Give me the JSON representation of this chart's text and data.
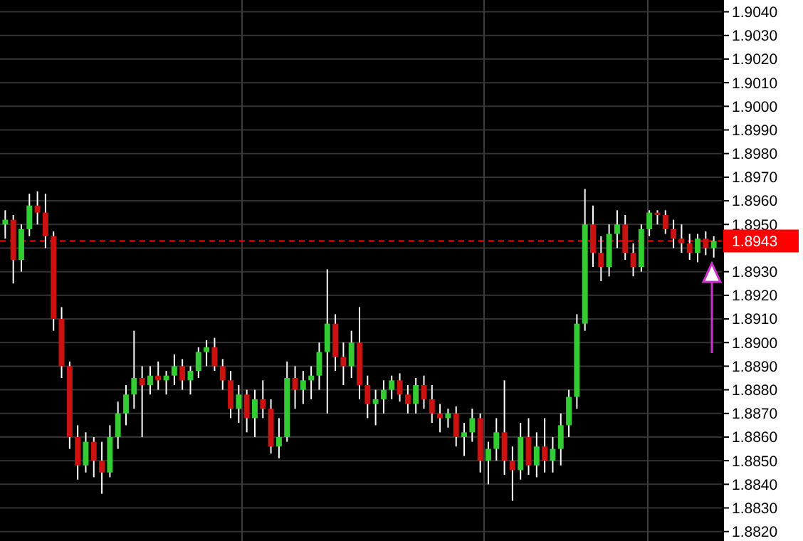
{
  "chart_data": {
    "type": "candlestick",
    "categories": [
      null,
      null,
      null,
      null,
      null,
      null,
      null,
      null,
      null,
      null,
      null,
      null,
      null,
      null,
      null,
      null,
      null,
      null,
      null,
      null,
      null,
      null,
      null,
      null,
      null,
      null,
      null,
      null,
      null,
      null,
      null,
      null,
      null,
      null,
      null,
      null,
      null,
      null,
      null,
      null,
      null,
      null,
      null,
      null,
      null,
      null,
      null,
      null,
      null,
      null,
      null,
      null,
      null,
      null,
      null,
      null,
      null,
      null,
      null,
      null,
      null,
      null,
      null,
      null,
      null,
      null,
      null,
      null,
      null,
      null,
      null,
      null,
      null,
      null,
      null,
      null,
      null,
      null,
      null,
      null,
      null,
      null,
      null,
      null,
      null,
      null,
      null,
      null,
      null
    ],
    "ohlc": [
      [
        1.895,
        1.8956,
        1.8944,
        1.8952
      ],
      [
        1.8952,
        1.8954,
        1.8925,
        1.8935
      ],
      [
        1.8935,
        1.895,
        1.893,
        1.8948
      ],
      [
        1.8948,
        1.8963,
        1.8945,
        1.8958
      ],
      [
        1.8958,
        1.8964,
        1.895,
        1.8955
      ],
      [
        1.8955,
        1.8963,
        1.894,
        1.8945
      ],
      [
        1.8945,
        1.8947,
        1.8905,
        1.891
      ],
      [
        1.891,
        1.8915,
        1.8885,
        1.889
      ],
      [
        1.889,
        1.8892,
        1.8855,
        1.886
      ],
      [
        1.886,
        1.8865,
        1.8842,
        1.8848
      ],
      [
        1.8848,
        1.8862,
        1.8845,
        1.8858
      ],
      [
        1.8858,
        1.886,
        1.8843,
        1.885
      ],
      [
        1.885,
        1.8858,
        1.8836,
        1.8845
      ],
      [
        1.8845,
        1.8865,
        1.8843,
        1.886
      ],
      [
        1.886,
        1.8875,
        1.8855,
        1.887
      ],
      [
        1.887,
        1.8882,
        1.8865,
        1.8878
      ],
      [
        1.8878,
        1.8905,
        1.8872,
        1.8885
      ],
      [
        1.8885,
        1.889,
        1.886,
        1.8882
      ],
      [
        1.8882,
        1.889,
        1.8878,
        1.8886
      ],
      [
        1.8886,
        1.8892,
        1.888,
        1.8884
      ],
      [
        1.8884,
        1.8888,
        1.8878,
        1.8886
      ],
      [
        1.8886,
        1.8895,
        1.8882,
        1.889
      ],
      [
        1.889,
        1.8893,
        1.888,
        1.8884
      ],
      [
        1.8884,
        1.889,
        1.8878,
        1.8888
      ],
      [
        1.8888,
        1.8898,
        1.8885,
        1.8896
      ],
      [
        1.8896,
        1.8901,
        1.889,
        1.8898
      ],
      [
        1.8898,
        1.8902,
        1.8888,
        1.889
      ],
      [
        1.889,
        1.8893,
        1.888,
        1.8884
      ],
      [
        1.8884,
        1.8888,
        1.8868,
        1.8872
      ],
      [
        1.8872,
        1.8882,
        1.8866,
        1.8878
      ],
      [
        1.8878,
        1.888,
        1.8862,
        1.8868
      ],
      [
        1.8868,
        1.888,
        1.886,
        1.8876
      ],
      [
        1.8876,
        1.8884,
        1.8868,
        1.8872
      ],
      [
        1.8872,
        1.8876,
        1.8853,
        1.8856
      ],
      [
        1.8856,
        1.8868,
        1.8851,
        1.886
      ],
      [
        1.886,
        1.8892,
        1.8858,
        1.8885
      ],
      [
        1.8885,
        1.889,
        1.8872,
        1.888
      ],
      [
        1.888,
        1.8888,
        1.8874,
        1.8884
      ],
      [
        1.8884,
        1.889,
        1.8876,
        1.8886
      ],
      [
        1.8886,
        1.89,
        1.888,
        1.8896
      ],
      [
        1.8896,
        1.8931,
        1.887,
        1.8908
      ],
      [
        1.8908,
        1.8912,
        1.8888,
        1.8894
      ],
      [
        1.8894,
        1.89,
        1.8882,
        1.889
      ],
      [
        1.889,
        1.8905,
        1.8885,
        1.89
      ],
      [
        1.89,
        1.8915,
        1.8876,
        1.8882
      ],
      [
        1.8882,
        1.8886,
        1.8868,
        1.8874
      ],
      [
        1.8874,
        1.888,
        1.8865,
        1.8876
      ],
      [
        1.8876,
        1.8884,
        1.887,
        1.888
      ],
      [
        1.888,
        1.8886,
        1.8876,
        1.8884
      ],
      [
        1.8884,
        1.8887,
        1.8875,
        1.8878
      ],
      [
        1.8878,
        1.8882,
        1.887,
        1.8874
      ],
      [
        1.8874,
        1.8885,
        1.887,
        1.8882
      ],
      [
        1.8882,
        1.8886,
        1.8872,
        1.8876
      ],
      [
        1.8876,
        1.8882,
        1.8866,
        1.887
      ],
      [
        1.887,
        1.8874,
        1.8862,
        1.8868
      ],
      [
        1.8868,
        1.8872,
        1.8864,
        1.887
      ],
      [
        1.887,
        1.8873,
        1.8856,
        1.886
      ],
      [
        1.886,
        1.8866,
        1.8852,
        1.8862
      ],
      [
        1.8862,
        1.8872,
        1.8858,
        1.8868
      ],
      [
        1.8868,
        1.887,
        1.8845,
        1.885
      ],
      [
        1.885,
        1.8858,
        1.884,
        1.8855
      ],
      [
        1.8855,
        1.8868,
        1.885,
        1.8862
      ],
      [
        1.8862,
        1.8884,
        1.8844,
        1.885
      ],
      [
        1.885,
        1.8856,
        1.8833,
        1.8846
      ],
      [
        1.8846,
        1.8866,
        1.8842,
        1.886
      ],
      [
        1.886,
        1.8868,
        1.8844,
        1.8848
      ],
      [
        1.8848,
        1.8862,
        1.8843,
        1.8856
      ],
      [
        1.8856,
        1.8868,
        1.8845,
        1.885
      ],
      [
        1.885,
        1.886,
        1.8845,
        1.8855
      ],
      [
        1.8855,
        1.887,
        1.8848,
        1.8865
      ],
      [
        1.8865,
        1.888,
        1.886,
        1.8877
      ],
      [
        1.8877,
        1.8912,
        1.8872,
        1.8908
      ],
      [
        1.8908,
        1.8965,
        1.8905,
        1.895
      ],
      [
        1.895,
        1.8958,
        1.8932,
        1.8938
      ],
      [
        1.8938,
        1.8945,
        1.8926,
        1.8932
      ],
      [
        1.8932,
        1.895,
        1.8928,
        1.8946
      ],
      [
        1.8946,
        1.8956,
        1.894,
        1.895
      ],
      [
        1.895,
        1.8954,
        1.8935,
        1.8938
      ],
      [
        1.8938,
        1.8942,
        1.8928,
        1.8932
      ],
      [
        1.8932,
        1.895,
        1.893,
        1.8948
      ],
      [
        1.8948,
        1.8956,
        1.8945,
        1.8955
      ],
      [
        1.8955,
        1.8956,
        1.895,
        1.8954
      ],
      [
        1.8954,
        1.8956,
        1.8946,
        1.8948
      ],
      [
        1.8948,
        1.8952,
        1.894,
        1.8944
      ],
      [
        1.8944,
        1.895,
        1.8938,
        1.8942
      ],
      [
        1.8942,
        1.8946,
        1.8935,
        1.8938
      ],
      [
        1.8938,
        1.8946,
        1.8934,
        1.8944
      ],
      [
        1.8944,
        1.8947,
        1.8937,
        1.894
      ],
      [
        1.894,
        1.8945,
        1.8936,
        1.8943
      ]
    ],
    "ylim": [
      1.8816,
      1.9045
    ],
    "yticks": [
      {
        "value": 1.882,
        "label": "1.8820"
      },
      {
        "value": 1.883,
        "label": "1.8830"
      },
      {
        "value": 1.884,
        "label": "1.8840"
      },
      {
        "value": 1.885,
        "label": "1.8850"
      },
      {
        "value": 1.886,
        "label": "1.8860"
      },
      {
        "value": 1.887,
        "label": "1.8870"
      },
      {
        "value": 1.888,
        "label": "1.8880"
      },
      {
        "value": 1.889,
        "label": "1.8890"
      },
      {
        "value": 1.89,
        "label": "1.8900"
      },
      {
        "value": 1.891,
        "label": "1.8910"
      },
      {
        "value": 1.892,
        "label": "1.8920"
      },
      {
        "value": 1.893,
        "label": "1.8930"
      },
      {
        "value": 1.894,
        "label": null
      },
      {
        "value": 1.895,
        "label": "1.8950"
      },
      {
        "value": 1.896,
        "label": "1.8960"
      },
      {
        "value": 1.897,
        "label": "1.8970"
      },
      {
        "value": 1.898,
        "label": "1.8980"
      },
      {
        "value": 1.899,
        "label": "1.8990"
      },
      {
        "value": 1.9,
        "label": "1.9000"
      },
      {
        "value": 1.901,
        "label": "1.9010"
      },
      {
        "value": 1.902,
        "label": "1.9020"
      },
      {
        "value": 1.903,
        "label": "1.9030"
      },
      {
        "value": 1.904,
        "label": "1.9040"
      }
    ],
    "ref_lines": [
      {
        "axis": "y",
        "value": 1.8943,
        "label": "1.8943",
        "color": "#ff0000",
        "line_style": "dashed"
      }
    ],
    "grid": "y",
    "tick_labels": "y"
  }
}
